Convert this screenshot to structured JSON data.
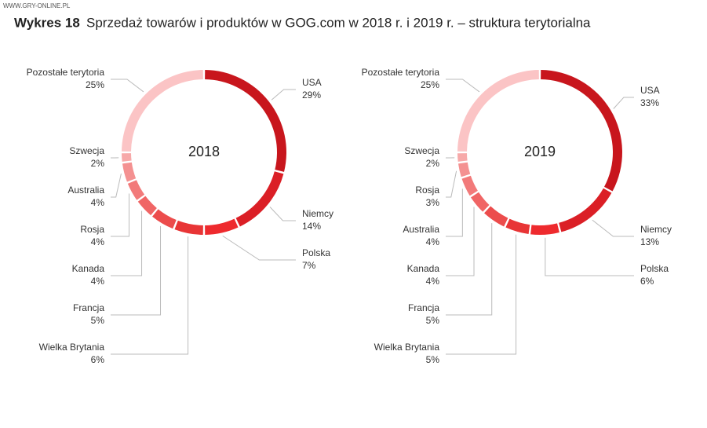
{
  "watermark": "WWW.GRY-ONLINE.PL",
  "header": {
    "number": "Wykres 18",
    "title": "Sprzedaż towarów i produktów w GOG.com w 2018 r. i 2019 r. – struktura terytorialna"
  },
  "chart_data": [
    {
      "type": "donut",
      "center_label": "2018",
      "categories": [
        "USA",
        "Niemcy",
        "Polska",
        "Wielka Brytania",
        "Francja",
        "Kanada",
        "Rosja",
        "Australia",
        "Szwecja",
        "Pozostałe terytoria"
      ],
      "values": [
        29,
        14,
        7,
        6,
        5,
        4,
        4,
        4,
        2,
        25
      ],
      "value_labels": [
        "29%",
        "14%",
        "7%",
        "6%",
        "5%",
        "4%",
        "4%",
        "4%",
        "2%",
        "25%"
      ],
      "colors": [
        "#c8161d",
        "#db1f26",
        "#ee2a2e",
        "#e83536",
        "#ec4c4c",
        "#f06565",
        "#f27a7a",
        "#f49191",
        "#f7a9a9",
        "#fbc4c5"
      ]
    },
    {
      "type": "donut",
      "center_label": "2019",
      "categories": [
        "USA",
        "Niemcy",
        "Polska",
        "Wielka Brytania",
        "Francja",
        "Kanada",
        "Australia",
        "Rosja",
        "Szwecja",
        "Pozostałe terytoria"
      ],
      "values": [
        33,
        13,
        6,
        5,
        5,
        4,
        4,
        3,
        2,
        25
      ],
      "value_labels": [
        "33%",
        "13%",
        "6%",
        "5%",
        "5%",
        "4%",
        "4%",
        "3%",
        "2%",
        "25%"
      ],
      "colors": [
        "#c8161d",
        "#db1f26",
        "#ee2a2e",
        "#e83536",
        "#ec4c4c",
        "#f06565",
        "#f27a7a",
        "#f49191",
        "#f7a9a9",
        "#fbc4c5"
      ]
    }
  ]
}
